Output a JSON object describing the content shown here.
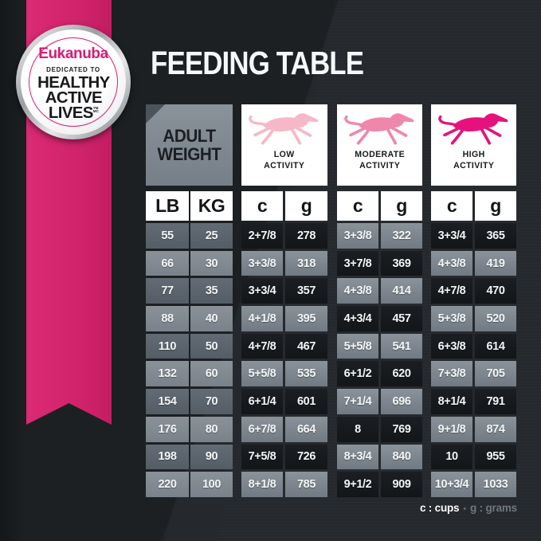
{
  "badge": {
    "brand": "Eukanuba",
    "tagline": "DEDICATED TO",
    "headline": [
      "HEALTHY",
      "ACTIVE",
      "LIVES"
    ],
    "trademark": "TM",
    "trademark2": "MC"
  },
  "table": {
    "adult_weight": [
      "ADULT",
      "WEIGHT"
    ]
  },
  "activity": [
    {
      "line1": "LOW",
      "line2": "ACTIVITY",
      "dog_color": "#f6b7c9"
    },
    {
      "line1": "MODERATE",
      "line2": "ACTIVITY",
      "dog_color": "#ef87aa"
    },
    {
      "line1": "HIGH",
      "line2": "ACTIVITY",
      "dog_color": "#e5127e"
    }
  ],
  "legend": {
    "cups": "c : cups",
    "sep": "•",
    "grams": "g : grams"
  },
  "colors": {
    "ribbon": "#d2246c",
    "accent_magenta": "#d81b74",
    "background": "#212529",
    "cell_dark": "#16191d",
    "cell_gray": "#7e8790",
    "weight_dark": "#5c656e",
    "weight_light": "#848c94"
  },
  "chart_data": {
    "type": "table",
    "title": "FEEDING TABLE",
    "column_groups": [
      "ADULT WEIGHT",
      "LOW ACTIVITY",
      "MODERATE ACTIVITY",
      "HIGH ACTIVITY"
    ],
    "columns": [
      "LB",
      "KG",
      "c",
      "g",
      "c",
      "g",
      "c",
      "g"
    ],
    "units_legend": "c : cups • g : grams",
    "rows": [
      [
        "55",
        "25",
        "2+7/8",
        "278",
        "3+3/8",
        "322",
        "3+3/4",
        "365"
      ],
      [
        "66",
        "30",
        "3+3/8",
        "318",
        "3+7/8",
        "369",
        "4+3/8",
        "419"
      ],
      [
        "77",
        "35",
        "3+3/4",
        "357",
        "4+3/8",
        "414",
        "4+7/8",
        "470"
      ],
      [
        "88",
        "40",
        "4+1/8",
        "395",
        "4+3/4",
        "457",
        "5+3/8",
        "520"
      ],
      [
        "110",
        "50",
        "4+7/8",
        "467",
        "5+5/8",
        "541",
        "6+3/8",
        "614"
      ],
      [
        "132",
        "60",
        "5+5/8",
        "535",
        "6+1/2",
        "620",
        "7+3/8",
        "705"
      ],
      [
        "154",
        "70",
        "6+1/4",
        "601",
        "7+1/4",
        "696",
        "8+1/4",
        "791"
      ],
      [
        "176",
        "80",
        "6+7/8",
        "664",
        "8",
        "769",
        "9+1/8",
        "874"
      ],
      [
        "198",
        "90",
        "7+5/8",
        "726",
        "8+3/4",
        "840",
        "10",
        "955"
      ],
      [
        "220",
        "100",
        "8+1/8",
        "785",
        "9+1/2",
        "909",
        "10+3/4",
        "1033"
      ]
    ]
  }
}
